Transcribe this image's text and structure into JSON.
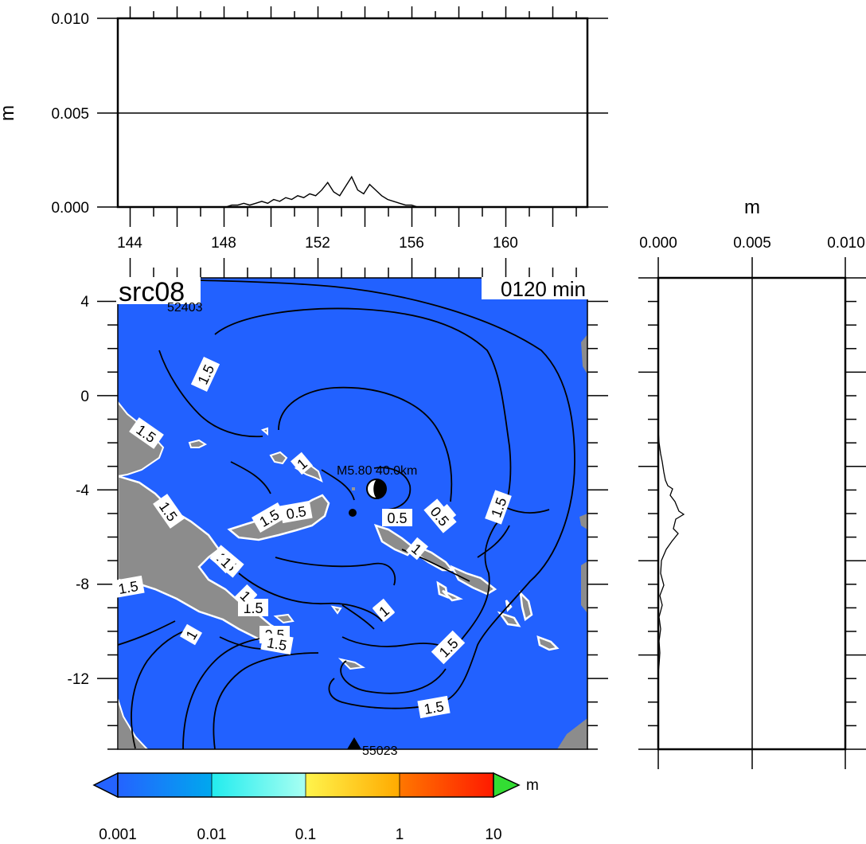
{
  "map": {
    "source_label": "src08",
    "time_label": "0120 min",
    "x_ticks": [
      "144",
      "148",
      "152",
      "156",
      "160"
    ],
    "y_ticks": [
      "4",
      "0",
      "-4",
      "-8",
      "-12"
    ],
    "epicenter_label": "M5.80 40.0km",
    "station_top": "52403",
    "station_bottom": "55023",
    "contour_labels": [
      "1.5",
      "1.5",
      "1.5",
      "1",
      "1",
      "0.5",
      "1.5",
      "0.5",
      "1.5",
      "1",
      "1.5",
      "1",
      "1.5",
      "1",
      "1.5",
      "1",
      "0.5",
      "1.5",
      "1.5",
      "1.5",
      "0.5",
      "1",
      "1",
      "1",
      "1.5"
    ],
    "colors": {
      "ocean": "#2261ff",
      "land": "#8c8c8c"
    }
  },
  "top_profile": {
    "y_unit": "m",
    "y_ticks": [
      "0.010",
      "0.005",
      "0.000"
    ],
    "values": [
      0,
      0,
      0,
      0,
      0,
      0,
      0.0001,
      0.0001,
      0.0002,
      0.0001,
      0.0002,
      0.0003,
      0.0002,
      0.0004,
      0.0003,
      0.0005,
      0.0004,
      0.0006,
      0.0005,
      0.0007,
      0.0006,
      0.0009,
      0.0013,
      0.0008,
      0.0006,
      0.0011,
      0.0016,
      0.0009,
      0.0007,
      0.0012,
      0.0009,
      0.0006,
      0.0004,
      0.0003,
      0.0002,
      0.0001,
      0.0001,
      0,
      0,
      0,
      0,
      0,
      0,
      0,
      0,
      0,
      0,
      0
    ]
  },
  "side_profile": {
    "x_unit": "m",
    "x_ticks": [
      "0.000",
      "0.005",
      "0.010"
    ]
  },
  "colorbar": {
    "unit": "m",
    "ticks": [
      "0.001",
      "0.01",
      "0.1",
      "1",
      "10"
    ],
    "colors": [
      "#2178ff",
      "#00d8e8",
      "#ffe24a",
      "#ff6a00",
      "#33dd33"
    ]
  }
}
